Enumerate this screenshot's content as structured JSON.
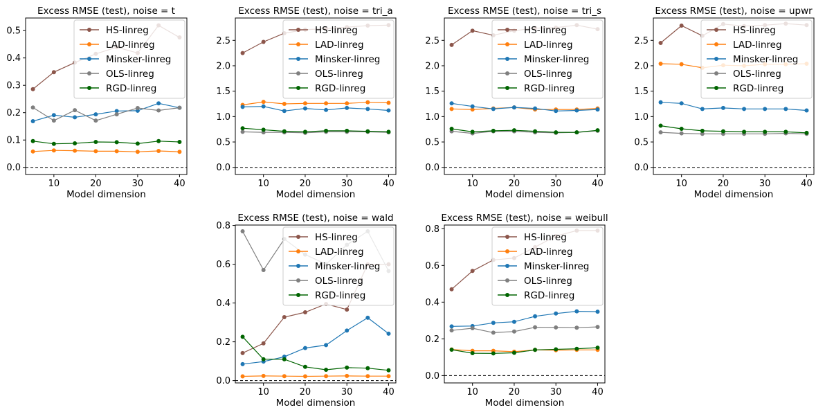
{
  "chart_data": [
    {
      "type": "line",
      "title": "Excess RMSE (test), noise = t",
      "xlabel": "Model dimension",
      "ylabel": "",
      "x": [
        5,
        10,
        15,
        20,
        25,
        30,
        35,
        40
      ],
      "xlim": [
        3.25,
        41.75
      ],
      "ylim": [
        -0.026,
        0.546
      ],
      "xticks": [
        10,
        20,
        30,
        40
      ],
      "yticks": [
        0.0,
        0.1,
        0.2,
        0.3,
        0.4,
        0.5
      ],
      "ytick_labels": [
        "0.0",
        "0.1",
        "0.2",
        "0.3",
        "0.4",
        "0.5"
      ],
      "reference_line": 0,
      "grid": false,
      "legend_position": "top-right",
      "series": [
        {
          "name": "HS-linreg",
          "color": "#8c564b",
          "values": [
            0.286,
            0.348,
            0.383,
            0.415,
            0.439,
            0.418,
            0.519,
            0.475
          ]
        },
        {
          "name": "LAD-linreg",
          "color": "#ff7f0e",
          "values": [
            0.058,
            0.062,
            0.061,
            0.059,
            0.059,
            0.057,
            0.06,
            0.057
          ]
        },
        {
          "name": "Minsker-linreg",
          "color": "#1f77b4",
          "values": [
            0.169,
            0.191,
            0.183,
            0.194,
            0.206,
            0.207,
            0.234,
            0.218
          ]
        },
        {
          "name": "OLS-linreg",
          "color": "#7f7f7f",
          "values": [
            0.219,
            0.171,
            0.209,
            0.171,
            0.194,
            0.217,
            0.208,
            0.218
          ]
        },
        {
          "name": "RGD-linreg",
          "color": "#006400",
          "values": [
            0.096,
            0.086,
            0.088,
            0.093,
            0.092,
            0.087,
            0.096,
            0.093
          ]
        }
      ]
    },
    {
      "type": "line",
      "title": "Excess RMSE (test), noise = tri_a",
      "xlabel": "Model dimension",
      "ylabel": "",
      "x": [
        5,
        10,
        15,
        20,
        25,
        30,
        35,
        40
      ],
      "xlim": [
        3.25,
        41.75
      ],
      "ylim": [
        -0.14,
        2.94
      ],
      "xticks": [
        10,
        20,
        30,
        40
      ],
      "yticks": [
        0.0,
        0.5,
        1.0,
        1.5,
        2.0,
        2.5
      ],
      "ytick_labels": [
        "0.0",
        "0.5",
        "1.0",
        "1.5",
        "2.0",
        "2.5"
      ],
      "reference_line": 0,
      "grid": false,
      "legend_position": "top-right",
      "series": [
        {
          "name": "HS-linreg",
          "color": "#8c564b",
          "values": [
            2.25,
            2.47,
            2.64,
            2.71,
            2.73,
            2.76,
            2.79,
            2.8
          ]
        },
        {
          "name": "LAD-linreg",
          "color": "#ff7f0e",
          "values": [
            1.23,
            1.29,
            1.25,
            1.26,
            1.26,
            1.26,
            1.28,
            1.27
          ]
        },
        {
          "name": "Minsker-linreg",
          "color": "#1f77b4",
          "values": [
            1.19,
            1.2,
            1.11,
            1.16,
            1.13,
            1.17,
            1.15,
            1.12
          ]
        },
        {
          "name": "OLS-linreg",
          "color": "#7f7f7f",
          "values": [
            0.7,
            0.69,
            0.69,
            0.68,
            0.7,
            0.7,
            0.7,
            0.69
          ]
        },
        {
          "name": "RGD-linreg",
          "color": "#006400",
          "values": [
            0.77,
            0.74,
            0.71,
            0.7,
            0.72,
            0.72,
            0.71,
            0.7
          ]
        }
      ]
    },
    {
      "type": "line",
      "title": "Excess RMSE (test), noise = tri_s",
      "xlabel": "Model dimension",
      "ylabel": "",
      "x": [
        5,
        10,
        15,
        20,
        25,
        30,
        35,
        40
      ],
      "xlim": [
        3.25,
        41.75
      ],
      "ylim": [
        -0.14,
        2.94
      ],
      "xticks": [
        10,
        20,
        30,
        40
      ],
      "yticks": [
        0.0,
        0.5,
        1.0,
        1.5,
        2.0,
        2.5
      ],
      "ytick_labels": [
        "0.0",
        "0.5",
        "1.0",
        "1.5",
        "2.0",
        "2.5"
      ],
      "reference_line": 0,
      "grid": false,
      "legend_position": "top-right",
      "series": [
        {
          "name": "HS-linreg",
          "color": "#8c564b",
          "values": [
            2.41,
            2.69,
            2.6,
            2.69,
            2.74,
            2.75,
            2.8,
            2.72
          ]
        },
        {
          "name": "LAD-linreg",
          "color": "#ff7f0e",
          "values": [
            1.15,
            1.14,
            1.16,
            1.18,
            1.14,
            1.14,
            1.14,
            1.16
          ]
        },
        {
          "name": "Minsker-linreg",
          "color": "#1f77b4",
          "values": [
            1.26,
            1.2,
            1.15,
            1.18,
            1.16,
            1.11,
            1.12,
            1.14
          ]
        },
        {
          "name": "OLS-linreg",
          "color": "#7f7f7f",
          "values": [
            0.71,
            0.67,
            0.71,
            0.71,
            0.69,
            0.68,
            0.69,
            0.72
          ]
        },
        {
          "name": "RGD-linreg",
          "color": "#006400",
          "values": [
            0.76,
            0.7,
            0.72,
            0.73,
            0.71,
            0.69,
            0.69,
            0.73
          ]
        }
      ]
    },
    {
      "type": "line",
      "title": "Excess RMSE (test), noise = upwr",
      "xlabel": "Model dimension",
      "ylabel": "",
      "x": [
        5,
        10,
        15,
        20,
        25,
        30,
        35,
        40
      ],
      "xlim": [
        3.25,
        41.75
      ],
      "ylim": [
        -0.14,
        2.94
      ],
      "xticks": [
        10,
        20,
        30,
        40
      ],
      "yticks": [
        0.0,
        0.5,
        1.0,
        1.5,
        2.0,
        2.5
      ],
      "ytick_labels": [
        "0.0",
        "0.5",
        "1.0",
        "1.5",
        "2.0",
        "2.5"
      ],
      "reference_line": 0,
      "grid": false,
      "legend_position": "top-right",
      "series": [
        {
          "name": "HS-linreg",
          "color": "#8c564b",
          "values": [
            2.45,
            2.79,
            2.59,
            2.82,
            2.78,
            2.8,
            2.83,
            2.8
          ]
        },
        {
          "name": "LAD-linreg",
          "color": "#ff7f0e",
          "values": [
            2.04,
            2.03,
            1.96,
            2.01,
            2.0,
            2.03,
            2.03,
            2.04
          ]
        },
        {
          "name": "Minsker-linreg",
          "color": "#1f77b4",
          "values": [
            1.28,
            1.26,
            1.15,
            1.17,
            1.15,
            1.15,
            1.15,
            1.12
          ]
        },
        {
          "name": "OLS-linreg",
          "color": "#7f7f7f",
          "values": [
            0.69,
            0.67,
            0.66,
            0.66,
            0.66,
            0.66,
            0.67,
            0.66
          ]
        },
        {
          "name": "RGD-linreg",
          "color": "#006400",
          "values": [
            0.82,
            0.76,
            0.72,
            0.71,
            0.7,
            0.7,
            0.7,
            0.68
          ]
        }
      ]
    },
    {
      "type": "line",
      "title": "Excess RMSE (test), noise = wald",
      "xlabel": "Model dimension",
      "ylabel": "",
      "x": [
        5,
        10,
        15,
        20,
        25,
        30,
        35,
        40
      ],
      "xlim": [
        3.25,
        41.75
      ],
      "ylim": [
        -0.012,
        0.802
      ],
      "xticks": [
        10,
        20,
        30,
        40
      ],
      "yticks": [
        0.0,
        0.2,
        0.4,
        0.6,
        0.8
      ],
      "ytick_labels": [
        "0.0",
        "0.2",
        "0.4",
        "0.6",
        "0.8"
      ],
      "reference_line": 0,
      "grid": false,
      "legend_position": "top-right",
      "series": [
        {
          "name": "HS-linreg",
          "color": "#8c564b",
          "values": [
            0.142,
            0.192,
            0.327,
            0.352,
            0.395,
            0.366,
            0.6,
            0.6
          ]
        },
        {
          "name": "LAD-linreg",
          "color": "#ff7f0e",
          "values": [
            0.022,
            0.024,
            0.023,
            0.022,
            0.023,
            0.024,
            0.023,
            0.023
          ]
        },
        {
          "name": "Minsker-linreg",
          "color": "#1f77b4",
          "values": [
            0.085,
            0.098,
            0.123,
            0.168,
            0.183,
            0.258,
            0.324,
            0.242
          ]
        },
        {
          "name": "OLS-linreg",
          "color": "#7f7f7f",
          "values": [
            0.77,
            0.57,
            0.73,
            0.65,
            0.6,
            0.7,
            0.77,
            0.565
          ]
        },
        {
          "name": "RGD-linreg",
          "color": "#006400",
          "values": [
            0.226,
            0.11,
            0.11,
            0.071,
            0.056,
            0.067,
            0.064,
            0.053
          ]
        }
      ]
    },
    {
      "type": "line",
      "title": "Excess RMSE (test), noise = weibull",
      "xlabel": "Model dimension",
      "ylabel": "",
      "x": [
        5,
        10,
        15,
        20,
        25,
        30,
        35,
        40
      ],
      "xlim": [
        3.25,
        41.75
      ],
      "ylim": [
        -0.04,
        0.82
      ],
      "xticks": [
        10,
        20,
        30,
        40
      ],
      "yticks": [
        0.0,
        0.2,
        0.4,
        0.6,
        0.8
      ],
      "ytick_labels": [
        "0.0",
        "0.2",
        "0.4",
        "0.6",
        "0.8"
      ],
      "reference_line": 0,
      "grid": false,
      "legend_position": "top-right",
      "series": [
        {
          "name": "HS-linreg",
          "color": "#8c564b",
          "values": [
            0.47,
            0.57,
            0.63,
            0.64,
            0.7,
            0.76,
            0.79,
            0.79
          ]
        },
        {
          "name": "LAD-linreg",
          "color": "#ff7f0e",
          "values": [
            0.142,
            0.135,
            0.135,
            0.13,
            0.14,
            0.138,
            0.14,
            0.14
          ]
        },
        {
          "name": "Minsker-linreg",
          "color": "#1f77b4",
          "values": [
            0.268,
            0.27,
            0.287,
            0.293,
            0.323,
            0.338,
            0.35,
            0.348
          ]
        },
        {
          "name": "OLS-linreg",
          "color": "#7f7f7f",
          "values": [
            0.246,
            0.258,
            0.234,
            0.24,
            0.263,
            0.262,
            0.261,
            0.265
          ]
        },
        {
          "name": "RGD-linreg",
          "color": "#006400",
          "values": [
            0.141,
            0.122,
            0.121,
            0.124,
            0.14,
            0.143,
            0.146,
            0.152
          ]
        }
      ]
    }
  ]
}
